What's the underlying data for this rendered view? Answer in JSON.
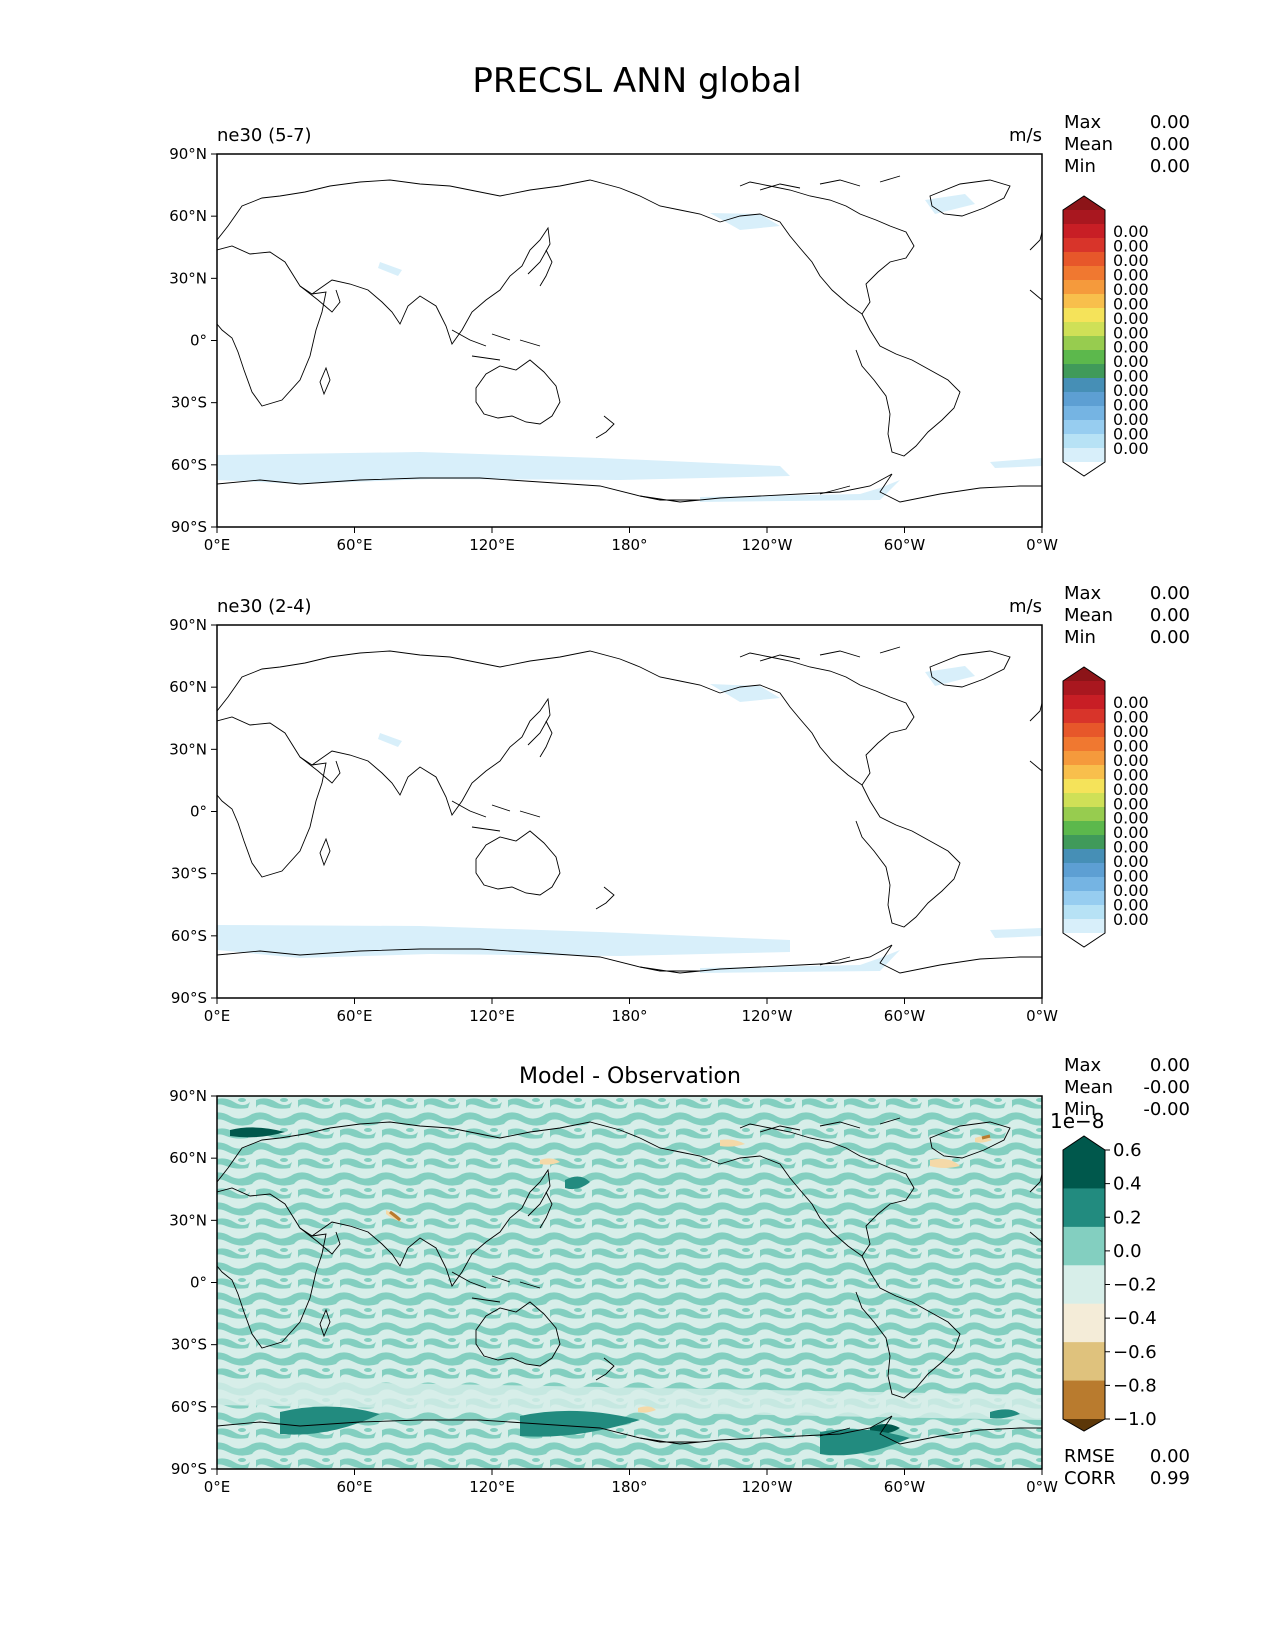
{
  "title": "PRECSL ANN global",
  "panels": [
    {
      "id": "p1",
      "left_title": "ne30 (5-7)",
      "right_title": "m/s",
      "center_title": "",
      "stats": [
        {
          "label": "Max",
          "value": "0.00"
        },
        {
          "label": "Mean",
          "value": "0.00"
        },
        {
          "label": "Min",
          "value": "0.00"
        }
      ],
      "colorbar_labels": [
        "0.00",
        "0.00",
        "0.00",
        "0.00",
        "0.00",
        "0.00",
        "0.00",
        "0.00",
        "0.00",
        "0.00",
        "0.00",
        "0.00",
        "0.00",
        "0.00",
        "0.00",
        "0.00"
      ],
      "colorbar_colors": [
        "#ffffff",
        "#d8effa",
        "#b7e2f5",
        "#97cdf0",
        "#75b4e3",
        "#5d9fd3",
        "#468fb6",
        "#409a5a",
        "#5cb84c",
        "#97cc4f",
        "#cfe057",
        "#f5e35a",
        "#f8bf4c",
        "#f59a3c",
        "#f07830",
        "#e7572a",
        "#d8342a",
        "#c81e25",
        "#a9171f",
        "#8c1418"
      ]
    },
    {
      "id": "p2",
      "left_title": "ne30 (2-4)",
      "right_title": "m/s",
      "center_title": "",
      "stats": [
        {
          "label": "Max",
          "value": "0.00"
        },
        {
          "label": "Mean",
          "value": "0.00"
        },
        {
          "label": "Min",
          "value": "0.00"
        }
      ],
      "colorbar_labels": [
        "0.00",
        "0.00",
        "0.00",
        "0.00",
        "0.00",
        "0.00",
        "0.00",
        "0.00",
        "0.00",
        "0.00",
        "0.00",
        "0.00",
        "0.00",
        "0.00",
        "0.00",
        "0.00"
      ],
      "colorbar_colors": [
        "#ffffff",
        "#d8effa",
        "#b7e2f5",
        "#97cdf0",
        "#75b4e3",
        "#5d9fd3",
        "#468fb6",
        "#409a5a",
        "#5cb84c",
        "#97cc4f",
        "#cfe057",
        "#f5e35a",
        "#f8bf4c",
        "#f59a3c",
        "#f07830",
        "#e7572a",
        "#d8342a",
        "#c81e25",
        "#a9171f",
        "#8c1418"
      ]
    },
    {
      "id": "p3",
      "left_title": "",
      "right_title": "",
      "center_title": "Model - Observation",
      "stats": [
        {
          "label": "Max",
          "value": "0.00"
        },
        {
          "label": "Mean",
          "value": "-0.00"
        },
        {
          "label": "Min",
          "value": "-0.00"
        }
      ],
      "colorbar_exponent": "1e−8",
      "colorbar_labels": [
        "0.6",
        "0.4",
        "0.2",
        "0.0",
        "−0.2",
        "−0.4",
        "−0.6",
        "−0.8",
        "−1.0"
      ],
      "colorbar_colors": [
        "#00584c",
        "#228b7f",
        "#83cfc0",
        "#d7eee9",
        "#f4ecd8",
        "#dfc27d",
        "#b97b2e",
        "#7e4a0f",
        "#5c3708"
      ],
      "bottom_stats": [
        {
          "label": "RMSE",
          "value": "0.00"
        },
        {
          "label": "CORR",
          "value": "0.99"
        }
      ]
    }
  ],
  "axes": {
    "lon_ticks": [
      "0°E",
      "60°E",
      "120°E",
      "180°",
      "120°W",
      "60°W",
      "0°W"
    ],
    "lat_ticks": [
      "90°N",
      "60°N",
      "30°N",
      "0°",
      "30°S",
      "60°S",
      "90°S"
    ]
  }
}
